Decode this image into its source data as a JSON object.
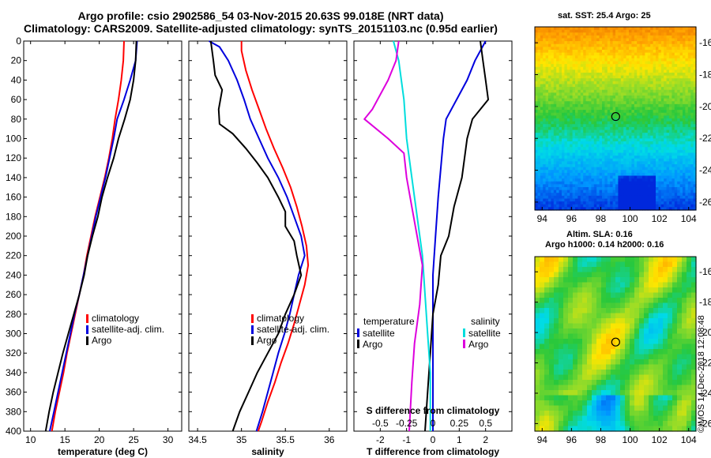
{
  "header": {
    "line1": "Argo profile: csio 2902586_54 03-Nov-2015 20.63S 99.018E (NRT data)",
    "line2": "Climatology: CARS2009. Satellite-adjusted climatology: synTS_20151103.nc (0.95d earlier)"
  },
  "depth_ticks": [
    0,
    20,
    40,
    60,
    80,
    100,
    120,
    140,
    160,
    180,
    200,
    220,
    240,
    260,
    280,
    300,
    320,
    340,
    360,
    380,
    400
  ],
  "chart_data": [
    {
      "type": "line",
      "id": "temperature",
      "xlabel": "temperature (deg C)",
      "ylabel": "",
      "xlim": [
        9,
        32
      ],
      "ylim": [
        400,
        0
      ],
      "xticks": [
        10,
        15,
        20,
        25,
        30
      ],
      "legend": [
        "climatology",
        "satellite-adj. clim.",
        "Argo"
      ],
      "series": [
        {
          "name": "climatology",
          "color": "#ff0000",
          "points": [
            [
              23.6,
              0
            ],
            [
              23.5,
              20
            ],
            [
              23.2,
              40
            ],
            [
              22.8,
              60
            ],
            [
              22.3,
              80
            ],
            [
              21.9,
              100
            ],
            [
              21.4,
              120
            ],
            [
              20.8,
              140
            ],
            [
              20.1,
              160
            ],
            [
              19.4,
              180
            ],
            [
              18.8,
              200
            ],
            [
              18.2,
              220
            ],
            [
              17.7,
              240
            ],
            [
              17.1,
              260
            ],
            [
              16.5,
              280
            ],
            [
              15.9,
              300
            ],
            [
              15.3,
              320
            ],
            [
              14.8,
              340
            ],
            [
              14.2,
              360
            ],
            [
              13.6,
              380
            ],
            [
              13.1,
              400
            ]
          ]
        },
        {
          "name": "satellite-adj. clim.",
          "color": "#0000dd",
          "points": [
            [
              25.5,
              0
            ],
            [
              25.3,
              20
            ],
            [
              24.5,
              40
            ],
            [
              23.6,
              60
            ],
            [
              22.6,
              80
            ],
            [
              22.1,
              100
            ],
            [
              21.5,
              120
            ],
            [
              20.9,
              140
            ],
            [
              20.2,
              160
            ],
            [
              19.5,
              180
            ],
            [
              18.9,
              200
            ],
            [
              18.3,
              220
            ],
            [
              17.7,
              240
            ],
            [
              17.1,
              260
            ],
            [
              16.4,
              280
            ],
            [
              15.8,
              300
            ],
            [
              15.2,
              320
            ],
            [
              14.6,
              340
            ],
            [
              14.0,
              360
            ],
            [
              13.4,
              380
            ],
            [
              12.8,
              400
            ]
          ]
        },
        {
          "name": "Argo",
          "color": "#000000",
          "points": [
            [
              25.4,
              0
            ],
            [
              25.3,
              20
            ],
            [
              25.0,
              40
            ],
            [
              24.5,
              60
            ],
            [
              23.7,
              80
            ],
            [
              22.8,
              100
            ],
            [
              22.1,
              120
            ],
            [
              21.2,
              140
            ],
            [
              20.4,
              160
            ],
            [
              19.8,
              180
            ],
            [
              19.0,
              200
            ],
            [
              18.3,
              220
            ],
            [
              17.8,
              240
            ],
            [
              17.1,
              260
            ],
            [
              16.3,
              280
            ],
            [
              15.5,
              300
            ],
            [
              14.7,
              320
            ],
            [
              14.0,
              340
            ],
            [
              13.3,
              360
            ],
            [
              12.7,
              380
            ],
            [
              12.2,
              400
            ]
          ]
        }
      ]
    },
    {
      "type": "line",
      "id": "salinity",
      "xlabel": "salinity",
      "ylabel": "",
      "xlim": [
        34.4,
        36.2
      ],
      "ylim": [
        400,
        0
      ],
      "xticks": [
        34.5,
        35,
        35.5,
        36
      ],
      "xticklabels": [
        "34.5",
        "35",
        "35.5",
        "36"
      ],
      "legend": [
        "climatology",
        "satellite-adj. clim.",
        "Argo"
      ],
      "series": [
        {
          "name": "climatology",
          "color": "#ff0000",
          "points": [
            [
              35.0,
              0
            ],
            [
              35.0,
              10
            ],
            [
              35.05,
              30
            ],
            [
              35.12,
              50
            ],
            [
              35.2,
              70
            ],
            [
              35.28,
              90
            ],
            [
              35.37,
              110
            ],
            [
              35.47,
              130
            ],
            [
              35.56,
              150
            ],
            [
              35.63,
              170
            ],
            [
              35.69,
              190
            ],
            [
              35.74,
              210
            ],
            [
              35.76,
              230
            ],
            [
              35.72,
              250
            ],
            [
              35.66,
              270
            ],
            [
              35.6,
              290
            ],
            [
              35.53,
              310
            ],
            [
              35.45,
              330
            ],
            [
              35.38,
              350
            ],
            [
              35.3,
              370
            ],
            [
              35.23,
              390
            ],
            [
              35.19,
              400
            ]
          ]
        },
        {
          "name": "satellite-adj. clim.",
          "color": "#0000dd",
          "points": [
            [
              34.63,
              0
            ],
            [
              34.75,
              6
            ],
            [
              34.85,
              20
            ],
            [
              34.95,
              40
            ],
            [
              35.03,
              60
            ],
            [
              35.1,
              80
            ],
            [
              35.2,
              100
            ],
            [
              35.3,
              120
            ],
            [
              35.42,
              140
            ],
            [
              35.52,
              160
            ],
            [
              35.6,
              180
            ],
            [
              35.68,
              200
            ],
            [
              35.72,
              220
            ],
            [
              35.65,
              240
            ],
            [
              35.6,
              260
            ],
            [
              35.55,
              280
            ],
            [
              35.49,
              300
            ],
            [
              35.42,
              320
            ],
            [
              35.36,
              340
            ],
            [
              35.3,
              360
            ],
            [
              35.24,
              380
            ],
            [
              35.17,
              400
            ]
          ]
        },
        {
          "name": "Argo",
          "color": "#000000",
          "points": [
            [
              34.65,
              0
            ],
            [
              34.68,
              20
            ],
            [
              34.7,
              35
            ],
            [
              34.78,
              50
            ],
            [
              34.74,
              70
            ],
            [
              34.75,
              85
            ],
            [
              34.9,
              95
            ],
            [
              35.05,
              110
            ],
            [
              35.18,
              125
            ],
            [
              35.3,
              140
            ],
            [
              35.42,
              160
            ],
            [
              35.5,
              175
            ],
            [
              35.5,
              190
            ],
            [
              35.6,
              205
            ],
            [
              35.63,
              220
            ],
            [
              35.68,
              240
            ],
            [
              35.6,
              260
            ],
            [
              35.5,
              280
            ],
            [
              35.42,
              300
            ],
            [
              35.3,
              320
            ],
            [
              35.18,
              340
            ],
            [
              35.08,
              360
            ],
            [
              34.98,
              380
            ],
            [
              34.9,
              400
            ]
          ]
        }
      ]
    },
    {
      "type": "line",
      "id": "difference",
      "xlabel": "T difference from climatology",
      "xlabel_top": "S difference from climatology",
      "xlim": [
        -3,
        3
      ],
      "ylim": [
        400,
        0
      ],
      "xticks": [
        -2,
        -1,
        0,
        1,
        2
      ],
      "top_xticks": [
        -0.5,
        -0.25,
        0,
        0.25,
        0.5
      ],
      "top_xticklabels": [
        "-0.5",
        "-0.25",
        "0",
        "0.25",
        "0.5"
      ],
      "legend_groups": [
        {
          "heading": "temperature",
          "items": [
            "satellite",
            "Argo"
          ]
        },
        {
          "heading": "salinity",
          "items": [
            "satellite",
            "Argo"
          ]
        }
      ],
      "series": [
        {
          "name": "temperature satellite",
          "color": "#0000dd",
          "points": [
            [
              2.0,
              0
            ],
            [
              1.6,
              20
            ],
            [
              1.3,
              40
            ],
            [
              0.9,
              60
            ],
            [
              0.5,
              80
            ],
            [
              0.4,
              100
            ],
            [
              0.3,
              130
            ],
            [
              0.2,
              160
            ],
            [
              0.1,
              200
            ],
            [
              0.0,
              240
            ],
            [
              0.0,
              280
            ],
            [
              0.0,
              320
            ],
            [
              0.0,
              360
            ],
            [
              0.0,
              400
            ]
          ]
        },
        {
          "name": "temperature Argo",
          "color": "#000000",
          "points": [
            [
              1.8,
              0
            ],
            [
              1.9,
              20
            ],
            [
              2.0,
              40
            ],
            [
              2.1,
              60
            ],
            [
              1.5,
              80
            ],
            [
              1.3,
              100
            ],
            [
              1.1,
              140
            ],
            [
              0.8,
              170
            ],
            [
              0.6,
              200
            ],
            [
              0.3,
              220
            ],
            [
              0.2,
              250
            ],
            [
              0.0,
              280
            ],
            [
              -0.1,
              320
            ],
            [
              -0.2,
              360
            ],
            [
              -0.3,
              400
            ]
          ]
        },
        {
          "name": "salinity satellite",
          "color": "#00dddd",
          "points": [
            [
              -1.5,
              0
            ],
            [
              -1.3,
              20
            ],
            [
              -1.1,
              60
            ],
            [
              -1.0,
              100
            ],
            [
              -0.8,
              140
            ],
            [
              -0.6,
              180
            ],
            [
              -0.4,
              220
            ],
            [
              -0.3,
              260
            ],
            [
              -0.2,
              300
            ],
            [
              -0.1,
              340
            ],
            [
              -0.1,
              400
            ]
          ]
        },
        {
          "name": "salinity Argo",
          "color": "#dd00dd",
          "points": [
            [
              -1.3,
              0
            ],
            [
              -1.4,
              20
            ],
            [
              -1.7,
              40
            ],
            [
              -2.3,
              70
            ],
            [
              -2.6,
              80
            ],
            [
              -1.7,
              100
            ],
            [
              -1.1,
              115
            ],
            [
              -1.0,
              140
            ],
            [
              -0.8,
              170
            ],
            [
              -0.6,
              200
            ],
            [
              -0.4,
              230
            ],
            [
              -0.5,
              270
            ],
            [
              -0.7,
              310
            ],
            [
              -0.8,
              350
            ],
            [
              -0.9,
              400
            ]
          ]
        }
      ]
    },
    {
      "type": "heatmap",
      "id": "sst-map",
      "title": "sat. SST: 25.4 Argo: 25",
      "xlim": [
        93.5,
        104.5
      ],
      "ylim": [
        -26.5,
        -15
      ],
      "xticks": [
        94,
        96,
        98,
        100,
        102,
        104
      ],
      "yticks": [
        -16,
        -18,
        -20,
        -22,
        -24,
        -26
      ],
      "marker": [
        99.018,
        -20.63
      ]
    },
    {
      "type": "heatmap",
      "id": "sla-map",
      "title": "Altim. SLA: 0.16",
      "subtitle": "Argo h1000: 0.14 h2000: 0.16",
      "xlim": [
        93.5,
        104.5
      ],
      "ylim": [
        -26.5,
        -15
      ],
      "xticks": [
        94,
        96,
        98,
        100,
        102,
        104
      ],
      "yticks": [
        -16,
        -18,
        -20,
        -22,
        -24,
        -26
      ],
      "marker": [
        99.018,
        -20.63
      ]
    }
  ],
  "stamp": "©IMOS 14-Dec-2018 12:08:48"
}
